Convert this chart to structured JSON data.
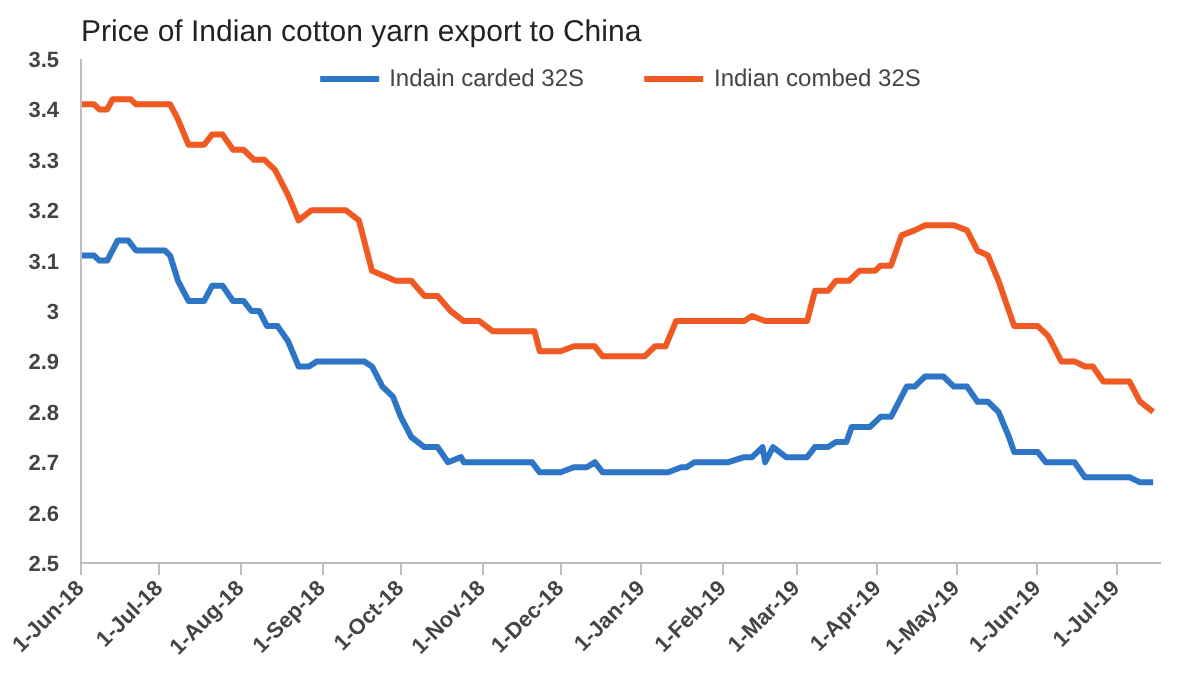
{
  "chart_data": {
    "type": "line",
    "title": "Price of Indian cotton yarn export to China",
    "legend": "top",
    "grid": false,
    "marker": "none",
    "line_style": "solid",
    "xlim": [
      "2018-06-01",
      "2019-07-18"
    ],
    "xticks": [
      {
        "value": "2018-06-01",
        "label": "1-Jun-18"
      },
      {
        "value": "2018-07-01",
        "label": "1-Jul-18"
      },
      {
        "value": "2018-08-01",
        "label": "1-Aug-18"
      },
      {
        "value": "2018-09-01",
        "label": "1-Sep-18"
      },
      {
        "value": "2018-10-01",
        "label": "1-Oct-18"
      },
      {
        "value": "2018-11-01",
        "label": "1-Nov-18"
      },
      {
        "value": "2018-12-01",
        "label": "1-Dec-18"
      },
      {
        "value": "2019-01-01",
        "label": "1-Jan-19"
      },
      {
        "value": "2019-02-01",
        "label": "1-Feb-19"
      },
      {
        "value": "2019-03-01",
        "label": "1-Mar-19"
      },
      {
        "value": "2019-04-01",
        "label": "1-Apr-19"
      },
      {
        "value": "2019-05-01",
        "label": "1-May-19"
      },
      {
        "value": "2019-06-01",
        "label": "1-Jun-19"
      },
      {
        "value": "2019-07-01",
        "label": "1-Jul-19"
      }
    ],
    "ylim": [
      2.5,
      3.5
    ],
    "yticks": [
      2.5,
      2.6,
      2.7,
      2.8,
      2.9,
      3,
      3.1,
      3.2,
      3.3,
      3.4,
      3.5
    ],
    "series": [
      {
        "name": "Indain carded 32S",
        "color": "#2e75c6",
        "x": [
          "2018-06-01",
          "2018-06-06",
          "2018-06-08",
          "2018-06-11",
          "2018-06-15",
          "2018-06-19",
          "2018-06-22",
          "2018-07-03",
          "2018-07-05",
          "2018-07-08",
          "2018-07-12",
          "2018-07-18",
          "2018-07-21",
          "2018-07-25",
          "2018-07-29",
          "2018-08-02",
          "2018-08-05",
          "2018-08-08",
          "2018-08-11",
          "2018-08-15",
          "2018-08-19",
          "2018-08-23",
          "2018-08-27",
          "2018-08-30",
          "2018-09-17",
          "2018-09-20",
          "2018-09-24",
          "2018-09-28",
          "2018-10-01",
          "2018-10-05",
          "2018-10-10",
          "2018-10-15",
          "2018-10-19",
          "2018-10-24",
          "2018-10-25",
          "2018-11-20",
          "2018-11-23",
          "2018-12-01",
          "2018-12-06",
          "2018-12-11",
          "2018-12-14",
          "2018-12-17",
          "2019-01-11",
          "2019-01-16",
          "2019-01-18",
          "2019-01-21",
          "2019-02-03",
          "2019-02-09",
          "2019-02-12",
          "2019-02-16",
          "2019-02-17",
          "2019-02-20",
          "2019-02-25",
          "2019-03-05",
          "2019-03-08",
          "2019-03-13",
          "2019-03-16",
          "2019-03-20",
          "2019-03-22",
          "2019-03-29",
          "2019-04-02",
          "2019-04-06",
          "2019-04-08",
          "2019-04-12",
          "2019-04-15",
          "2019-04-19",
          "2019-04-26",
          "2019-04-30",
          "2019-05-05",
          "2019-05-09",
          "2019-05-13",
          "2019-05-17",
          "2019-05-21",
          "2019-05-23",
          "2019-06-01",
          "2019-06-04",
          "2019-06-15",
          "2019-06-19",
          "2019-07-06",
          "2019-07-10",
          "2019-07-15"
        ],
        "values": [
          3.11,
          3.11,
          3.1,
          3.1,
          3.14,
          3.14,
          3.12,
          3.12,
          3.11,
          3.06,
          3.02,
          3.02,
          3.05,
          3.05,
          3.02,
          3.02,
          3.0,
          3.0,
          2.97,
          2.97,
          2.94,
          2.89,
          2.89,
          2.9,
          2.9,
          2.89,
          2.85,
          2.83,
          2.79,
          2.75,
          2.73,
          2.73,
          2.7,
          2.71,
          2.7,
          2.7,
          2.68,
          2.68,
          2.69,
          2.69,
          2.7,
          2.68,
          2.68,
          2.69,
          2.69,
          2.7,
          2.7,
          2.71,
          2.71,
          2.73,
          2.7,
          2.73,
          2.71,
          2.71,
          2.73,
          2.73,
          2.74,
          2.74,
          2.77,
          2.77,
          2.79,
          2.79,
          2.81,
          2.85,
          2.85,
          2.87,
          2.87,
          2.85,
          2.85,
          2.82,
          2.82,
          2.8,
          2.75,
          2.72,
          2.72,
          2.7,
          2.7,
          2.67,
          2.67,
          2.66,
          2.66
        ]
      },
      {
        "name": "Indian combed 32S",
        "color": "#f05a22",
        "x": [
          "2018-06-01",
          "2018-06-06",
          "2018-06-08",
          "2018-06-11",
          "2018-06-13",
          "2018-06-20",
          "2018-06-22",
          "2018-07-05",
          "2018-07-08",
          "2018-07-12",
          "2018-07-18",
          "2018-07-21",
          "2018-07-25",
          "2018-07-29",
          "2018-08-02",
          "2018-08-06",
          "2018-08-10",
          "2018-08-14",
          "2018-08-19",
          "2018-08-23",
          "2018-08-28",
          "2018-09-10",
          "2018-09-15",
          "2018-09-20",
          "2018-09-29",
          "2018-10-05",
          "2018-10-10",
          "2018-10-15",
          "2018-10-20",
          "2018-10-25",
          "2018-10-31",
          "2018-11-05",
          "2018-11-21",
          "2018-11-23",
          "2018-12-01",
          "2018-12-06",
          "2018-12-14",
          "2018-12-17",
          "2019-01-02",
          "2019-01-06",
          "2019-01-10",
          "2019-01-14",
          "2019-02-09",
          "2019-02-12",
          "2019-02-17",
          "2019-02-20",
          "2019-03-05",
          "2019-03-08",
          "2019-03-13",
          "2019-03-16",
          "2019-03-21",
          "2019-03-25",
          "2019-03-31",
          "2019-04-02",
          "2019-04-06",
          "2019-04-10",
          "2019-04-15",
          "2019-04-19",
          "2019-04-30",
          "2019-05-05",
          "2019-05-09",
          "2019-05-13",
          "2019-05-17",
          "2019-05-23",
          "2019-06-01",
          "2019-06-05",
          "2019-06-10",
          "2019-06-15",
          "2019-06-19",
          "2019-06-22",
          "2019-06-26",
          "2019-07-06",
          "2019-07-10",
          "2019-07-15"
        ],
        "values": [
          3.41,
          3.41,
          3.4,
          3.4,
          3.42,
          3.42,
          3.41,
          3.41,
          3.38,
          3.33,
          3.33,
          3.35,
          3.35,
          3.32,
          3.32,
          3.3,
          3.3,
          3.28,
          3.23,
          3.18,
          3.2,
          3.2,
          3.18,
          3.08,
          3.06,
          3.06,
          3.03,
          3.03,
          3.0,
          2.98,
          2.98,
          2.96,
          2.96,
          2.92,
          2.92,
          2.93,
          2.93,
          2.91,
          2.91,
          2.93,
          2.93,
          2.98,
          2.98,
          2.99,
          2.98,
          2.98,
          2.98,
          3.04,
          3.04,
          3.06,
          3.06,
          3.08,
          3.08,
          3.09,
          3.09,
          3.15,
          3.16,
          3.17,
          3.17,
          3.16,
          3.12,
          3.11,
          3.06,
          2.97,
          2.97,
          2.95,
          2.9,
          2.9,
          2.89,
          2.89,
          2.86,
          2.86,
          2.82,
          2.8
        ]
      }
    ]
  }
}
